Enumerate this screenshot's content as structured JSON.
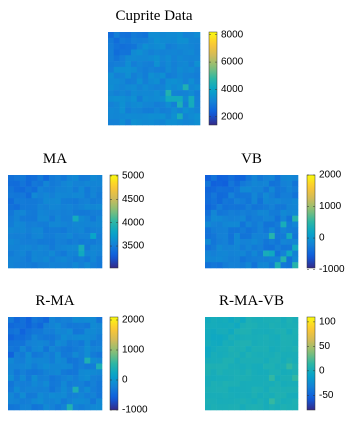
{
  "chart_data": [
    {
      "type": "image",
      "title": "Cuprite Data",
      "colormap": "parula",
      "ylim": [
        1400,
        8200
      ],
      "yticks": [
        2000,
        4000,
        6000,
        8000
      ]
    },
    {
      "type": "image",
      "title": "MA",
      "colormap": "parula",
      "ylim": [
        3030,
        5020
      ],
      "yticks": [
        3500,
        4000,
        4500,
        5000
      ]
    },
    {
      "type": "image",
      "title": "VB",
      "colormap": "parula",
      "ylim": [
        -950,
        2000
      ],
      "yticks": [
        -1000,
        0,
        1000,
        2000
      ]
    },
    {
      "type": "image",
      "title": "R-MA",
      "colormap": "parula",
      "ylim": [
        -1000,
        2100
      ],
      "yticks": [
        -1000,
        0,
        1000,
        2000
      ]
    },
    {
      "type": "image",
      "title": "R-MA-VB",
      "colormap": "parula",
      "ylim": [
        -80,
        110
      ],
      "yticks": [
        -50,
        0,
        50,
        100
      ]
    }
  ]
}
